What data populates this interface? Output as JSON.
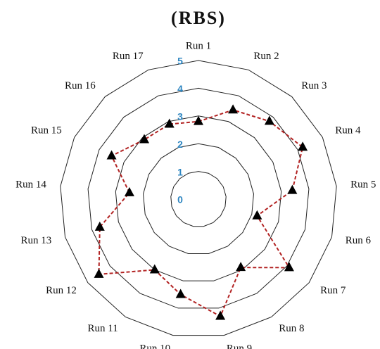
{
  "chart_data": {
    "type": "radar",
    "title": "(RBS)",
    "categories": [
      "Run 1",
      "Run 2",
      "Run 3",
      "Run 4",
      "Run 5",
      "Run 6",
      "Run 7",
      "Run 8",
      "Run 9",
      "Run 10",
      "Run 11",
      "Run 12",
      "Run 13",
      "Run 14",
      "Run 15",
      "Run 16",
      "Run 17"
    ],
    "series": [
      {
        "color": "#b22222",
        "values": [
          2.8,
          3.45,
          3.8,
          4.2,
          3.4,
          2.2,
          4.1,
          2.9,
          4.3,
          3.5,
          3.0,
          4.5,
          3.7,
          2.5,
          3.5,
          2.9,
          2.9
        ]
      }
    ],
    "ylim": [
      0,
      5
    ],
    "yticks": [
      0,
      1,
      2,
      3,
      4,
      5
    ],
    "grid": true
  }
}
